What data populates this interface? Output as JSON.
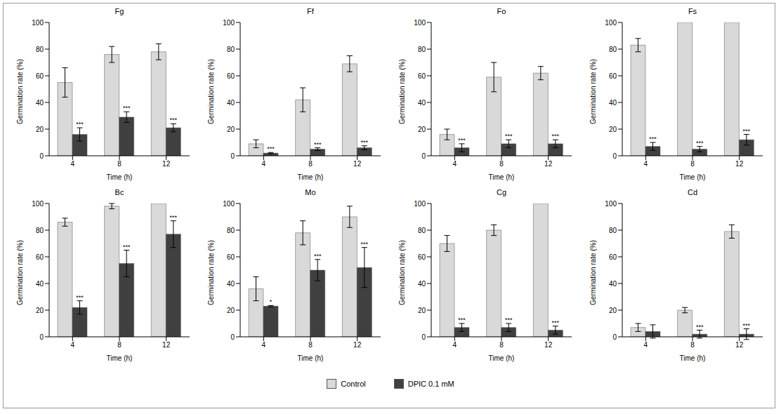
{
  "chart_data": [
    {
      "type": "bar",
      "title": "Fg",
      "categories": [
        "4",
        "8",
        "12"
      ],
      "x_label": "Time (h)",
      "y_label": "Germination rate (%)",
      "ylim": [
        0,
        100
      ],
      "yticks": [
        0,
        20,
        40,
        60,
        80,
        100
      ],
      "grid": false,
      "series": [
        {
          "name": "Control",
          "color": "#d9d9d9",
          "values": [
            55,
            76,
            78
          ],
          "errors": [
            11,
            6,
            6
          ]
        },
        {
          "name": "DPIC 0.1 mM",
          "color": "#404040",
          "values": [
            16,
            29,
            21
          ],
          "errors": [
            5,
            4,
            3
          ],
          "significance": [
            "***",
            "***",
            "***"
          ]
        }
      ]
    },
    {
      "type": "bar",
      "title": "Ff",
      "categories": [
        "4",
        "8",
        "12"
      ],
      "x_label": "Time (h)",
      "y_label": "Germination rate (%)",
      "ylim": [
        0,
        100
      ],
      "yticks": [
        0,
        20,
        40,
        60,
        80,
        100
      ],
      "grid": false,
      "series": [
        {
          "name": "Control",
          "color": "#d9d9d9",
          "values": [
            9,
            42,
            69
          ],
          "errors": [
            3,
            9,
            6
          ]
        },
        {
          "name": "DPIC 0.1 mM",
          "color": "#404040",
          "values": [
            2,
            5,
            6
          ],
          "errors": [
            0.5,
            1,
            1.5
          ],
          "significance": [
            "***",
            "***",
            "***"
          ]
        }
      ]
    },
    {
      "type": "bar",
      "title": "Fo",
      "categories": [
        "4",
        "8",
        "12"
      ],
      "x_label": "Time (h)",
      "y_label": "Germination rate (%)",
      "ylim": [
        0,
        100
      ],
      "yticks": [
        0,
        20,
        40,
        60,
        80,
        100
      ],
      "grid": false,
      "series": [
        {
          "name": "Control",
          "color": "#d9d9d9",
          "values": [
            16,
            59,
            62
          ],
          "errors": [
            4,
            11,
            5
          ]
        },
        {
          "name": "DPIC 0.1 mM",
          "color": "#404040",
          "values": [
            6,
            9,
            9
          ],
          "errors": [
            3,
            3,
            3
          ],
          "significance": [
            "***",
            "***",
            "***"
          ]
        }
      ]
    },
    {
      "type": "bar",
      "title": "Fs",
      "categories": [
        "4",
        "8",
        "12"
      ],
      "x_label": "Time (h)",
      "y_label": "Germination rate (%)",
      "ylim": [
        0,
        100
      ],
      "yticks": [
        0,
        20,
        40,
        60,
        80,
        100
      ],
      "grid": false,
      "series": [
        {
          "name": "Control",
          "color": "#d9d9d9",
          "values": [
            83,
            100,
            100
          ],
          "errors": [
            5,
            0,
            0
          ]
        },
        {
          "name": "DPIC 0.1 mM",
          "color": "#404040",
          "values": [
            7,
            5,
            12
          ],
          "errors": [
            3,
            2,
            4
          ],
          "significance": [
            "***",
            "***",
            "***"
          ]
        }
      ]
    },
    {
      "type": "bar",
      "title": "Bc",
      "categories": [
        "4",
        "8",
        "12"
      ],
      "x_label": "Time (h)",
      "y_label": "Germination rate (%)",
      "ylim": [
        0,
        100
      ],
      "yticks": [
        0,
        20,
        40,
        60,
        80,
        100
      ],
      "grid": false,
      "series": [
        {
          "name": "Control",
          "color": "#d9d9d9",
          "values": [
            86,
            98,
            100
          ],
          "errors": [
            3,
            2,
            0
          ]
        },
        {
          "name": "DPIC 0.1 mM",
          "color": "#404040",
          "values": [
            22,
            55,
            77
          ],
          "errors": [
            5,
            10,
            10
          ],
          "significance": [
            "***",
            "***",
            "***"
          ]
        }
      ]
    },
    {
      "type": "bar",
      "title": "Mo",
      "categories": [
        "4",
        "8",
        "12"
      ],
      "x_label": "Time (h)",
      "y_label": "Germination rate (%)",
      "ylim": [
        0,
        100
      ],
      "yticks": [
        0,
        20,
        40,
        60,
        80,
        100
      ],
      "grid": false,
      "series": [
        {
          "name": "Control",
          "color": "#d9d9d9",
          "values": [
            36,
            78,
            90
          ],
          "errors": [
            9,
            9,
            8
          ]
        },
        {
          "name": "DPIC 0.1 mM",
          "color": "#404040",
          "values": [
            23,
            50,
            52
          ],
          "errors": [
            0.5,
            8,
            15
          ],
          "significance": [
            "*",
            "***",
            "***"
          ]
        }
      ]
    },
    {
      "type": "bar",
      "title": "Cg",
      "categories": [
        "4",
        "8",
        "12"
      ],
      "x_label": "Time (h)",
      "y_label": "Germination rate (%)",
      "ylim": [
        0,
        100
      ],
      "yticks": [
        0,
        20,
        40,
        60,
        80,
        100
      ],
      "grid": false,
      "series": [
        {
          "name": "Control",
          "color": "#d9d9d9",
          "values": [
            70,
            80,
            100
          ],
          "errors": [
            6,
            4,
            0
          ]
        },
        {
          "name": "DPIC 0.1 mM",
          "color": "#404040",
          "values": [
            7,
            7,
            5
          ],
          "errors": [
            3,
            3,
            3
          ],
          "significance": [
            "***",
            "***",
            "***"
          ]
        }
      ]
    },
    {
      "type": "bar",
      "title": "Cd",
      "categories": [
        "4",
        "8",
        "12"
      ],
      "x_label": "Time (h)",
      "y_label": "Germination rate (%)",
      "ylim": [
        0,
        100
      ],
      "yticks": [
        0,
        20,
        40,
        60,
        80,
        100
      ],
      "grid": false,
      "series": [
        {
          "name": "Control",
          "color": "#d9d9d9",
          "values": [
            7,
            20,
            79
          ],
          "errors": [
            3,
            2,
            5
          ]
        },
        {
          "name": "DPIC 0.1 mM",
          "color": "#404040",
          "values": [
            4,
            2,
            2
          ],
          "errors": [
            5,
            3,
            4
          ],
          "significance": [
            null,
            "***",
            "***"
          ]
        }
      ]
    }
  ]
}
